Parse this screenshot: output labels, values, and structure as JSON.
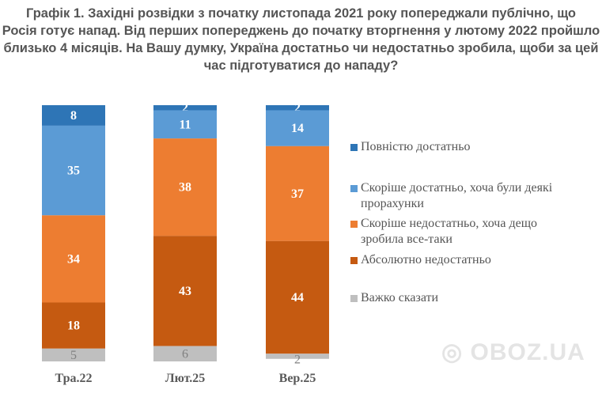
{
  "chart_data": {
    "type": "bar",
    "stacked": true,
    "title_lines": [
      "Графік 1. Західні розвідки з початку листопада 2021 року попереджали публічно, що",
      "Росія готує напад. Від перших попереджень до початку вторгнення у лютому 2022 пройшло",
      "близько 4 місяців. На Вашу думку, Україна достатньо чи недостатньо зробила, щоби за цей",
      "час підготуватися до нападу?"
    ],
    "categories": [
      "Тра.22",
      "Лют.25",
      "Вер.25"
    ],
    "series": [
      {
        "name": "Повністю достатньо",
        "color": "#2e75b6",
        "values": [
          8,
          2,
          2
        ]
      },
      {
        "name": "Скоріше достатньо, хоча були деякі прорахунки",
        "color": "#5b9bd5",
        "values": [
          35,
          11,
          14
        ]
      },
      {
        "name": "Скоріше недостатньо, хоча дещо зробила все-таки",
        "color": "#ed7d31",
        "values": [
          34,
          38,
          37
        ]
      },
      {
        "name": "Абсолютно недостатньо",
        "color": "#c55a11",
        "values": [
          18,
          43,
          44
        ]
      },
      {
        "name": "Важко сказати",
        "color": "#bfbfbf",
        "values": [
          5,
          6,
          2
        ]
      }
    ],
    "legend_lines": [
      [
        "Повністю достатньо"
      ],
      [
        "Скоріше достатньо, хоча були деякі",
        "прорахунки"
      ],
      [
        "Скоріше недостатньо, хоча дещо",
        "зробила все-таки"
      ],
      [
        "Абсолютно недостатньо"
      ],
      [
        "Важко сказати"
      ]
    ],
    "ylim": [
      0,
      100
    ],
    "grid": false,
    "legend_position": "right"
  },
  "watermark": "OBOZ.UA"
}
